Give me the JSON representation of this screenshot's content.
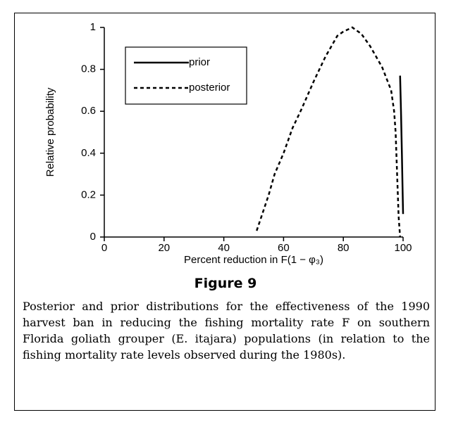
{
  "chart_data": {
    "type": "line",
    "ylabel": "Relative probability",
    "xlabel": "Percent reduction in F(1 − φ₃)",
    "xlim": [
      0,
      100
    ],
    "xticks": [
      0,
      20,
      40,
      60,
      80,
      100
    ],
    "ylim": [
      0,
      1
    ],
    "yticks": [
      0,
      0.2,
      0.4,
      0.6,
      0.8,
      1
    ],
    "grid": false,
    "legend": "upper left",
    "series": [
      {
        "name": "prior",
        "color": "#000000",
        "line_style": "solid",
        "x": [
          99,
          99.3,
          99.6,
          99.8,
          100
        ],
        "values": [
          0.77,
          0.6,
          0.4,
          0.25,
          0.11
        ]
      },
      {
        "name": "posterior",
        "color": "#000000",
        "line_style": "dashed",
        "x": [
          51,
          55,
          57,
          60,
          63,
          66,
          70,
          74,
          78,
          80,
          83,
          86,
          89,
          93,
          96,
          97,
          97.5,
          98,
          98.5,
          99
        ],
        "values": [
          0.03,
          0.2,
          0.3,
          0.4,
          0.52,
          0.61,
          0.74,
          0.86,
          0.96,
          0.98,
          1,
          0.97,
          0.91,
          0.81,
          0.7,
          0.6,
          0.5,
          0.3,
          0.1,
          0
        ]
      }
    ]
  },
  "figure_title": "Figure 9",
  "caption": "Posterior and prior distributions for the effectiveness of the 1990 harvest ban in reducing the fishing mortality rate F on southern Florida goliath grouper (E. itajara) populations (in relation to the fishing mortality rate levels observed during the 1980s)."
}
